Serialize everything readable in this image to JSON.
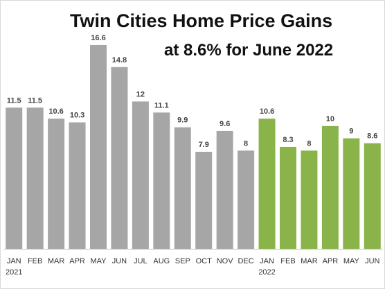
{
  "chart_data": {
    "type": "bar",
    "title": "Twin Cities Home Price Gains",
    "subtitle": "at 8.6% for June 2022",
    "categories": [
      "JAN",
      "FEB",
      "MAR",
      "APR",
      "MAY",
      "JUN",
      "JUL",
      "AUG",
      "SEP",
      "OCT",
      "NOV",
      "DEC",
      "JAN",
      "FEB",
      "MAR",
      "APR",
      "MAY",
      "JUN"
    ],
    "year_labels": [
      {
        "index": 0,
        "label": "2021"
      },
      {
        "index": 12,
        "label": "2022"
      }
    ],
    "values": [
      11.5,
      11.5,
      10.6,
      10.3,
      16.6,
      14.8,
      12,
      11.1,
      9.9,
      7.9,
      9.6,
      8,
      10.6,
      8.3,
      8,
      10,
      9,
      8.6
    ],
    "value_labels": [
      "11.5",
      "11.5",
      "10.6",
      "10.3",
      "16.6",
      "14.8",
      "12",
      "11.1",
      "9.9",
      "7.9",
      "9.6",
      "8",
      "10.6",
      "8.3",
      "8",
      "10",
      "9",
      "8.6"
    ],
    "colors": {
      "2021": "#a6a6a6",
      "2022": "#8ab44a",
      "axis": "#bfbfbf"
    },
    "xlabel": "",
    "ylabel": "",
    "ylim": [
      0,
      17.5
    ],
    "grid": false,
    "legend": "none"
  }
}
